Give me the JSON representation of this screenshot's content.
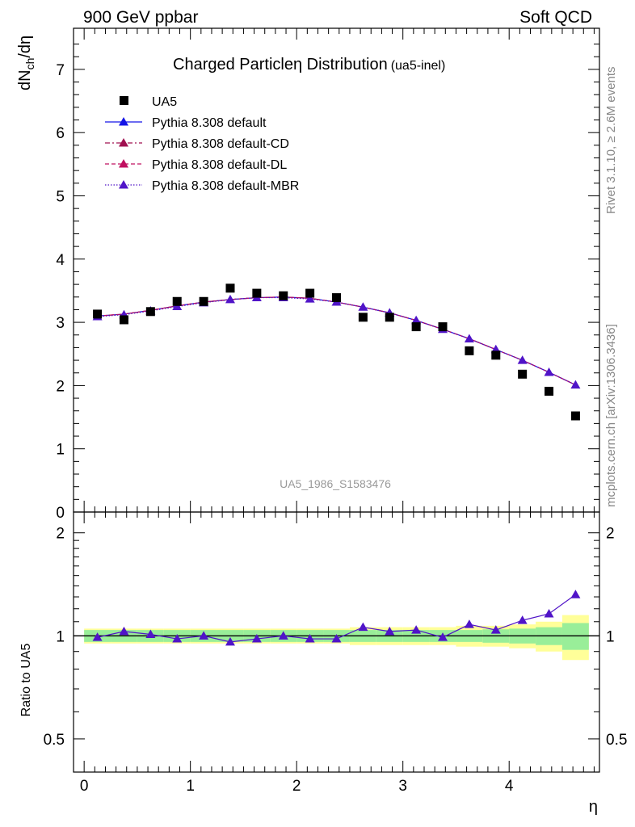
{
  "header": {
    "left": "900 GeV ppbar",
    "right": "Soft QCD"
  },
  "title": {
    "main": "Charged Particle",
    "symbol": "η",
    "rest": " Distribution",
    "sub": "(ua5-inel)"
  },
  "side_labels": {
    "rivet": "Rivet 3.1.10, ≥ 2.6M events",
    "mcplots": "mcplots.cern.ch [arXiv:1306.3436]"
  },
  "analysis_label": "UA5_1986_S1583476",
  "axes": {
    "ylabel_top": "dN_ch/dη",
    "ylabel_ratio": "Ratio to UA5",
    "xlabel": "η",
    "x_ticks": [
      "0",
      "1",
      "2",
      "3",
      "4"
    ],
    "y_ticks_top": [
      "0",
      "1",
      "2",
      "3",
      "4",
      "5",
      "6",
      "7"
    ],
    "y_ticks_ratio": [
      "0.5",
      "1",
      "2"
    ]
  },
  "legend": [
    {
      "label": "UA5",
      "style": "data"
    },
    {
      "label": "Pythia 8.308 default",
      "style": "solid",
      "color": "#1414e6"
    },
    {
      "label": "Pythia 8.308 default-CD",
      "style": "dashdot",
      "color": "#a01050"
    },
    {
      "label": "Pythia 8.308 default-DL",
      "style": "dashed",
      "color": "#c01060"
    },
    {
      "label": "Pythia 8.308 default-MBR",
      "style": "dotted",
      "color": "#5014c8"
    }
  ],
  "chart_data": {
    "type": "line",
    "x": [
      0.125,
      0.375,
      0.625,
      0.875,
      1.125,
      1.375,
      1.625,
      1.875,
      2.125,
      2.375,
      2.625,
      2.875,
      3.125,
      3.375,
      3.625,
      3.875,
      4.125,
      4.375,
      4.625
    ],
    "xlim": [
      -0.1,
      4.85
    ],
    "ylim": [
      0,
      7.65
    ],
    "ratio_ylim_log": [
      0.4,
      2.3
    ],
    "data": {
      "name": "UA5",
      "values": [
        3.13,
        3.04,
        3.17,
        3.33,
        3.33,
        3.54,
        3.46,
        3.42,
        3.46,
        3.39,
        3.08,
        3.08,
        2.93,
        2.93,
        2.55,
        2.48,
        2.18,
        1.91,
        1.52
      ],
      "band_inner": [
        0.04,
        0.04,
        0.04,
        0.04,
        0.04,
        0.04,
        0.04,
        0.04,
        0.04,
        0.04,
        0.04,
        0.04,
        0.04,
        0.04,
        0.04,
        0.045,
        0.05,
        0.06,
        0.09
      ],
      "band_outer": [
        0.05,
        0.05,
        0.05,
        0.05,
        0.05,
        0.05,
        0.05,
        0.05,
        0.05,
        0.05,
        0.06,
        0.06,
        0.06,
        0.06,
        0.07,
        0.07,
        0.08,
        0.1,
        0.15
      ]
    },
    "series": [
      {
        "name": "Pythia 8.308 default",
        "color": "#1414e6",
        "values": [
          3.1,
          3.13,
          3.19,
          3.26,
          3.32,
          3.36,
          3.39,
          3.4,
          3.38,
          3.32,
          3.24,
          3.15,
          3.03,
          2.89,
          2.74,
          2.57,
          2.4,
          2.21,
          2.01
        ]
      },
      {
        "name": "Pythia 8.308 default-CD",
        "color": "#a01050",
        "values": [
          3.1,
          3.13,
          3.19,
          3.26,
          3.32,
          3.36,
          3.39,
          3.4,
          3.38,
          3.32,
          3.24,
          3.15,
          3.03,
          2.89,
          2.74,
          2.57,
          2.4,
          2.21,
          2.01
        ]
      },
      {
        "name": "Pythia 8.308 default-DL",
        "color": "#c01060",
        "values": [
          3.1,
          3.13,
          3.19,
          3.26,
          3.32,
          3.36,
          3.39,
          3.4,
          3.38,
          3.32,
          3.24,
          3.15,
          3.03,
          2.89,
          2.74,
          2.57,
          2.4,
          2.21,
          2.01
        ]
      },
      {
        "name": "Pythia 8.308 default-MBR",
        "color": "#5014c8",
        "values": [
          3.09,
          3.12,
          3.18,
          3.25,
          3.31,
          3.36,
          3.39,
          3.39,
          3.37,
          3.32,
          3.24,
          3.15,
          3.03,
          2.89,
          2.74,
          2.57,
          2.4,
          2.21,
          2.01
        ]
      }
    ],
    "ratio": [
      0.99,
      1.03,
      1.01,
      0.98,
      1.0,
      0.96,
      0.98,
      1.0,
      0.98,
      0.98,
      1.06,
      1.03,
      1.04,
      0.99,
      1.08,
      1.04,
      1.11,
      1.16,
      1.32
    ]
  }
}
